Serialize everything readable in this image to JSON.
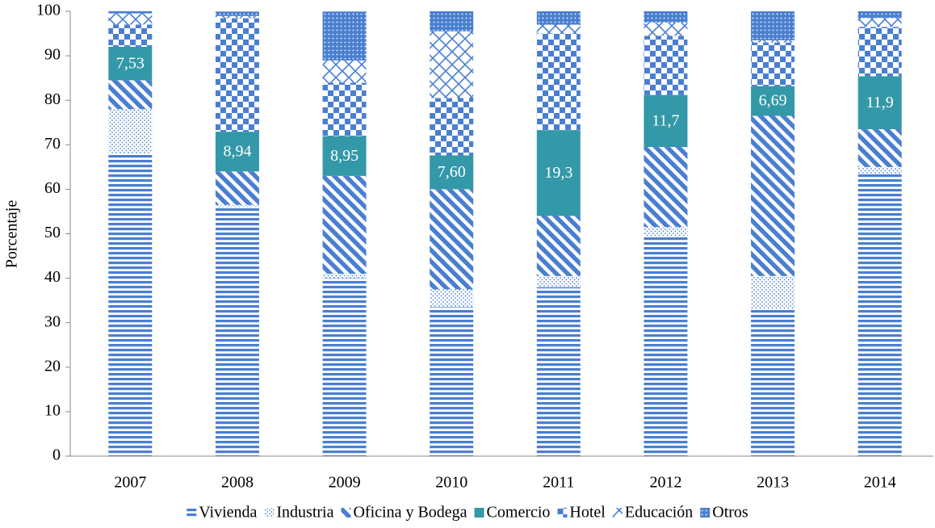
{
  "chart_data": {
    "type": "stacked_bar",
    "y_label": "Porcentaje",
    "categories": [
      "2007",
      "2008",
      "2009",
      "2010",
      "2011",
      "2012",
      "2013",
      "2014"
    ],
    "ylim": [
      0,
      100
    ],
    "yticks": [
      0,
      10,
      20,
      30,
      40,
      50,
      60,
      70,
      80,
      90,
      100
    ],
    "legend": "bottom",
    "series": [
      {
        "name": "Vivienda",
        "color": "#4a7fd0",
        "values": [
          68,
          56,
          40,
          33.5,
          38,
          49.5,
          33,
          63.5
        ]
      },
      {
        "name": "Industria",
        "color": "#4a7fd0",
        "values": [
          10,
          0.5,
          1,
          4,
          2.5,
          2,
          7.5,
          1.5
        ]
      },
      {
        "name": "Oficina y Bodega",
        "color": "#4a7fd0",
        "values": [
          6.5,
          7.5,
          22,
          22.5,
          13.5,
          18,
          36,
          8.5
        ]
      },
      {
        "name": "Comercio",
        "color": "#3398a8",
        "values": [
          7.53,
          8.94,
          8.95,
          7.6,
          19.3,
          11.7,
          6.69,
          11.9
        ],
        "value_labels": [
          "7,53",
          "8,94",
          "8,95",
          "7,60",
          "19,3",
          "11,7",
          "6,69",
          "11,9"
        ]
      },
      {
        "name": "Hotel",
        "color": "#4a7fd0",
        "values": [
          5,
          25.5,
          12,
          12.9,
          21.7,
          13.3,
          9.8,
          11.1
        ]
      },
      {
        "name": "Educación",
        "color": "#4a7fd0",
        "values": [
          2.5,
          0.5,
          5,
          15,
          2,
          3,
          0.5,
          2
        ]
      },
      {
        "name": "Otros",
        "color": "#4a7fd0",
        "values": [
          0.5,
          1,
          11,
          4.5,
          3,
          2.5,
          6.5,
          1.5
        ]
      }
    ]
  }
}
